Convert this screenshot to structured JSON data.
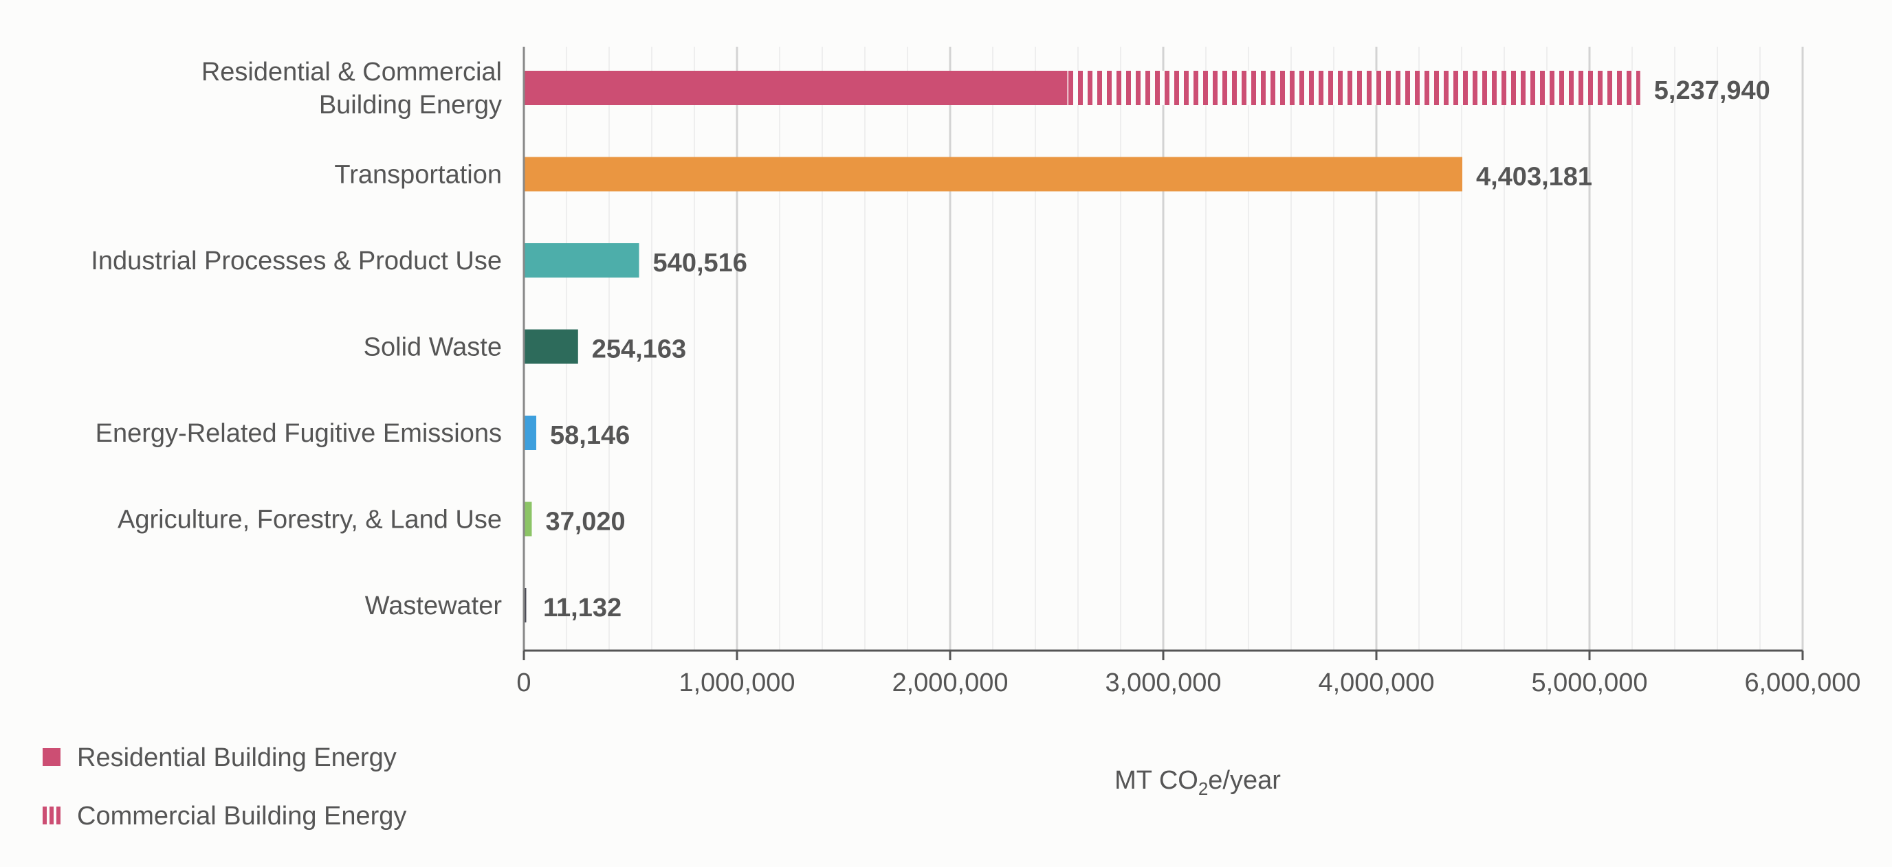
{
  "chart_data": {
    "type": "bar",
    "orientation": "horizontal",
    "stacked": true,
    "categories": [
      "Residential & Commercial Building Energy",
      "Transportation",
      "Industrial Processes & Product Use",
      "Solid Waste",
      "Energy-Related Fugitive Emissions",
      "Agriculture, Forestry, & Land Use",
      "Wastewater"
    ],
    "category_label_lines": [
      [
        "Residential & Commercial",
        "Building Energy"
      ],
      [
        "Transportation"
      ],
      [
        "Industrial Processes & Product Use"
      ],
      [
        "Solid Waste"
      ],
      [
        "Energy-Related Fugitive Emissions"
      ],
      [
        "Agriculture, Forestry, & Land Use"
      ],
      [
        "Wastewater"
      ]
    ],
    "values": [
      5237940,
      4403181,
      540516,
      254163,
      58146,
      37020,
      11132
    ],
    "value_labels": [
      "5,237,940",
      "4,403,181",
      "540,516",
      "254,163",
      "58,146",
      "37,020",
      "11,132"
    ],
    "segments": {
      "Residential & Commercial Building Energy": [
        {
          "name": "Residential Building Energy",
          "value": 2550000
        },
        {
          "name": "Commercial Building Energy",
          "value": 2687940
        }
      ]
    },
    "colors": [
      "#cc4e73",
      "#ea9641",
      "#4daeaa",
      "#2d6b5b",
      "#3d9fdd",
      "#8cc466",
      "#4a4a55"
    ],
    "xlim": [
      0,
      6000000
    ],
    "xticks": [
      0,
      1000000,
      2000000,
      3000000,
      4000000,
      5000000,
      6000000
    ],
    "xtick_labels": [
      "0",
      "1,000,000",
      "2,000,000",
      "3,000,000",
      "4,000,000",
      "5,000,000",
      "6,000,000"
    ],
    "minor_step": 200000,
    "xlabel_prefix": "MT CO",
    "xlabel_sub": "2",
    "xlabel_suffix": "e/year",
    "legend": [
      {
        "name": "Residential Building Energy",
        "style": "solid",
        "color": "#cc4e73"
      },
      {
        "name": "Commercial Building Energy",
        "style": "striped",
        "color": "#cc4e73"
      }
    ],
    "legend_position": "bottom-left",
    "grid": true
  }
}
